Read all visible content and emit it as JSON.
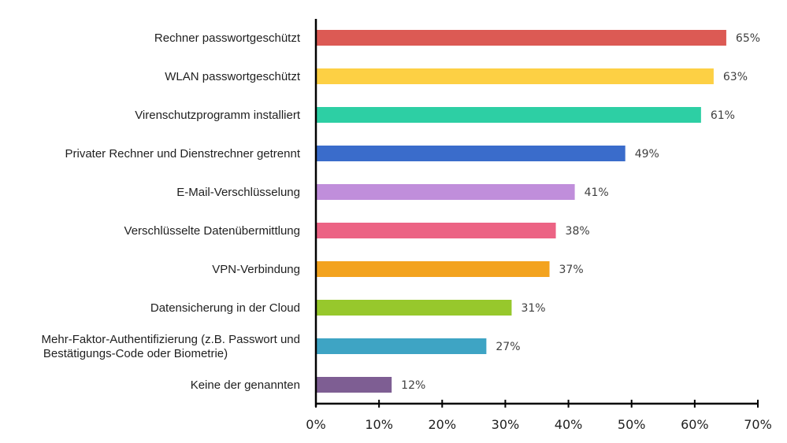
{
  "chart_data": {
    "type": "bar",
    "orientation": "horizontal",
    "title": "",
    "xlabel": "",
    "ylabel": "",
    "xlim": [
      0,
      70
    ],
    "x_ticks": [
      0,
      10,
      20,
      30,
      40,
      50,
      60,
      70
    ],
    "x_tick_labels": [
      "0%",
      "10%",
      "20%",
      "30%",
      "40%",
      "50%",
      "60%",
      "70%"
    ],
    "grid": false,
    "legend": "none",
    "categories": [
      [
        "Rechner passwortgeschützt"
      ],
      [
        "WLAN passwortgeschützt"
      ],
      [
        "Virenschutzprogramm installiert"
      ],
      [
        "Privater Rechner und Dienstrechner getrennt"
      ],
      [
        "E-Mail-Verschlüsselung"
      ],
      [
        "Verschlüsselte Datenübermittlung"
      ],
      [
        "VPN-Verbindung"
      ],
      [
        "Datensicherung in der Cloud"
      ],
      [
        "Mehr-Faktor-Authentifizierung (z.B. Passwort und",
        "Bestätigungs-Code oder Biometrie)"
      ],
      [
        "Keine der genannten"
      ]
    ],
    "values": [
      65,
      63,
      61,
      49,
      41,
      38,
      37,
      31,
      27,
      12
    ],
    "value_labels": [
      "65%",
      "63%",
      "61%",
      "49%",
      "41%",
      "38%",
      "37%",
      "31%",
      "27%",
      "12%"
    ],
    "colors": [
      "#dc5a54",
      "#fdd044",
      "#2dcfa4",
      "#3a6ccb",
      "#c08edb",
      "#ec6384",
      "#f3a31f",
      "#97c82c",
      "#3ea4c4",
      "#7e5e93"
    ]
  }
}
